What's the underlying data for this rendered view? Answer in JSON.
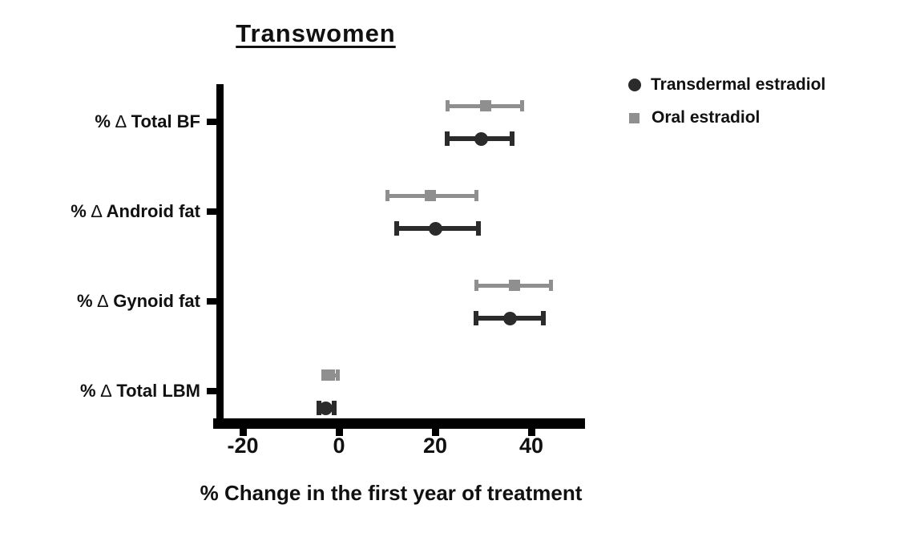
{
  "chart_data": {
    "type": "scatter",
    "subtype": "forest-plot-horizontal-error-bars",
    "title": "Transwomen",
    "xlabel": "% Change in the first year of treatment",
    "xlim": [
      -26,
      51
    ],
    "x_ticks": [
      -20,
      0,
      20,
      40
    ],
    "grid": false,
    "legend_position": "outside-top-right",
    "categories": [
      "% ∆ Total BF",
      "% ∆ Android fat",
      "% ∆ Gynoid fat",
      "% ∆ Total LBM"
    ],
    "series": [
      {
        "name": "Transdermal estradiol",
        "marker": "circle",
        "color": "#2b2b2b",
        "values": [
          29.5,
          20,
          35.5,
          -2.7
        ],
        "err_low": [
          22.5,
          12,
          28.5,
          -4.2
        ],
        "err_high": [
          36,
          29,
          42.5,
          -1
        ]
      },
      {
        "name": "Oral estradiol",
        "marker": "square",
        "color": "#8f8f8f",
        "values": [
          30.5,
          19,
          36.5,
          -2
        ],
        "err_low": [
          22.5,
          10,
          28.5,
          -3.3
        ],
        "err_high": [
          38,
          28.5,
          44,
          -0.3
        ]
      }
    ]
  }
}
